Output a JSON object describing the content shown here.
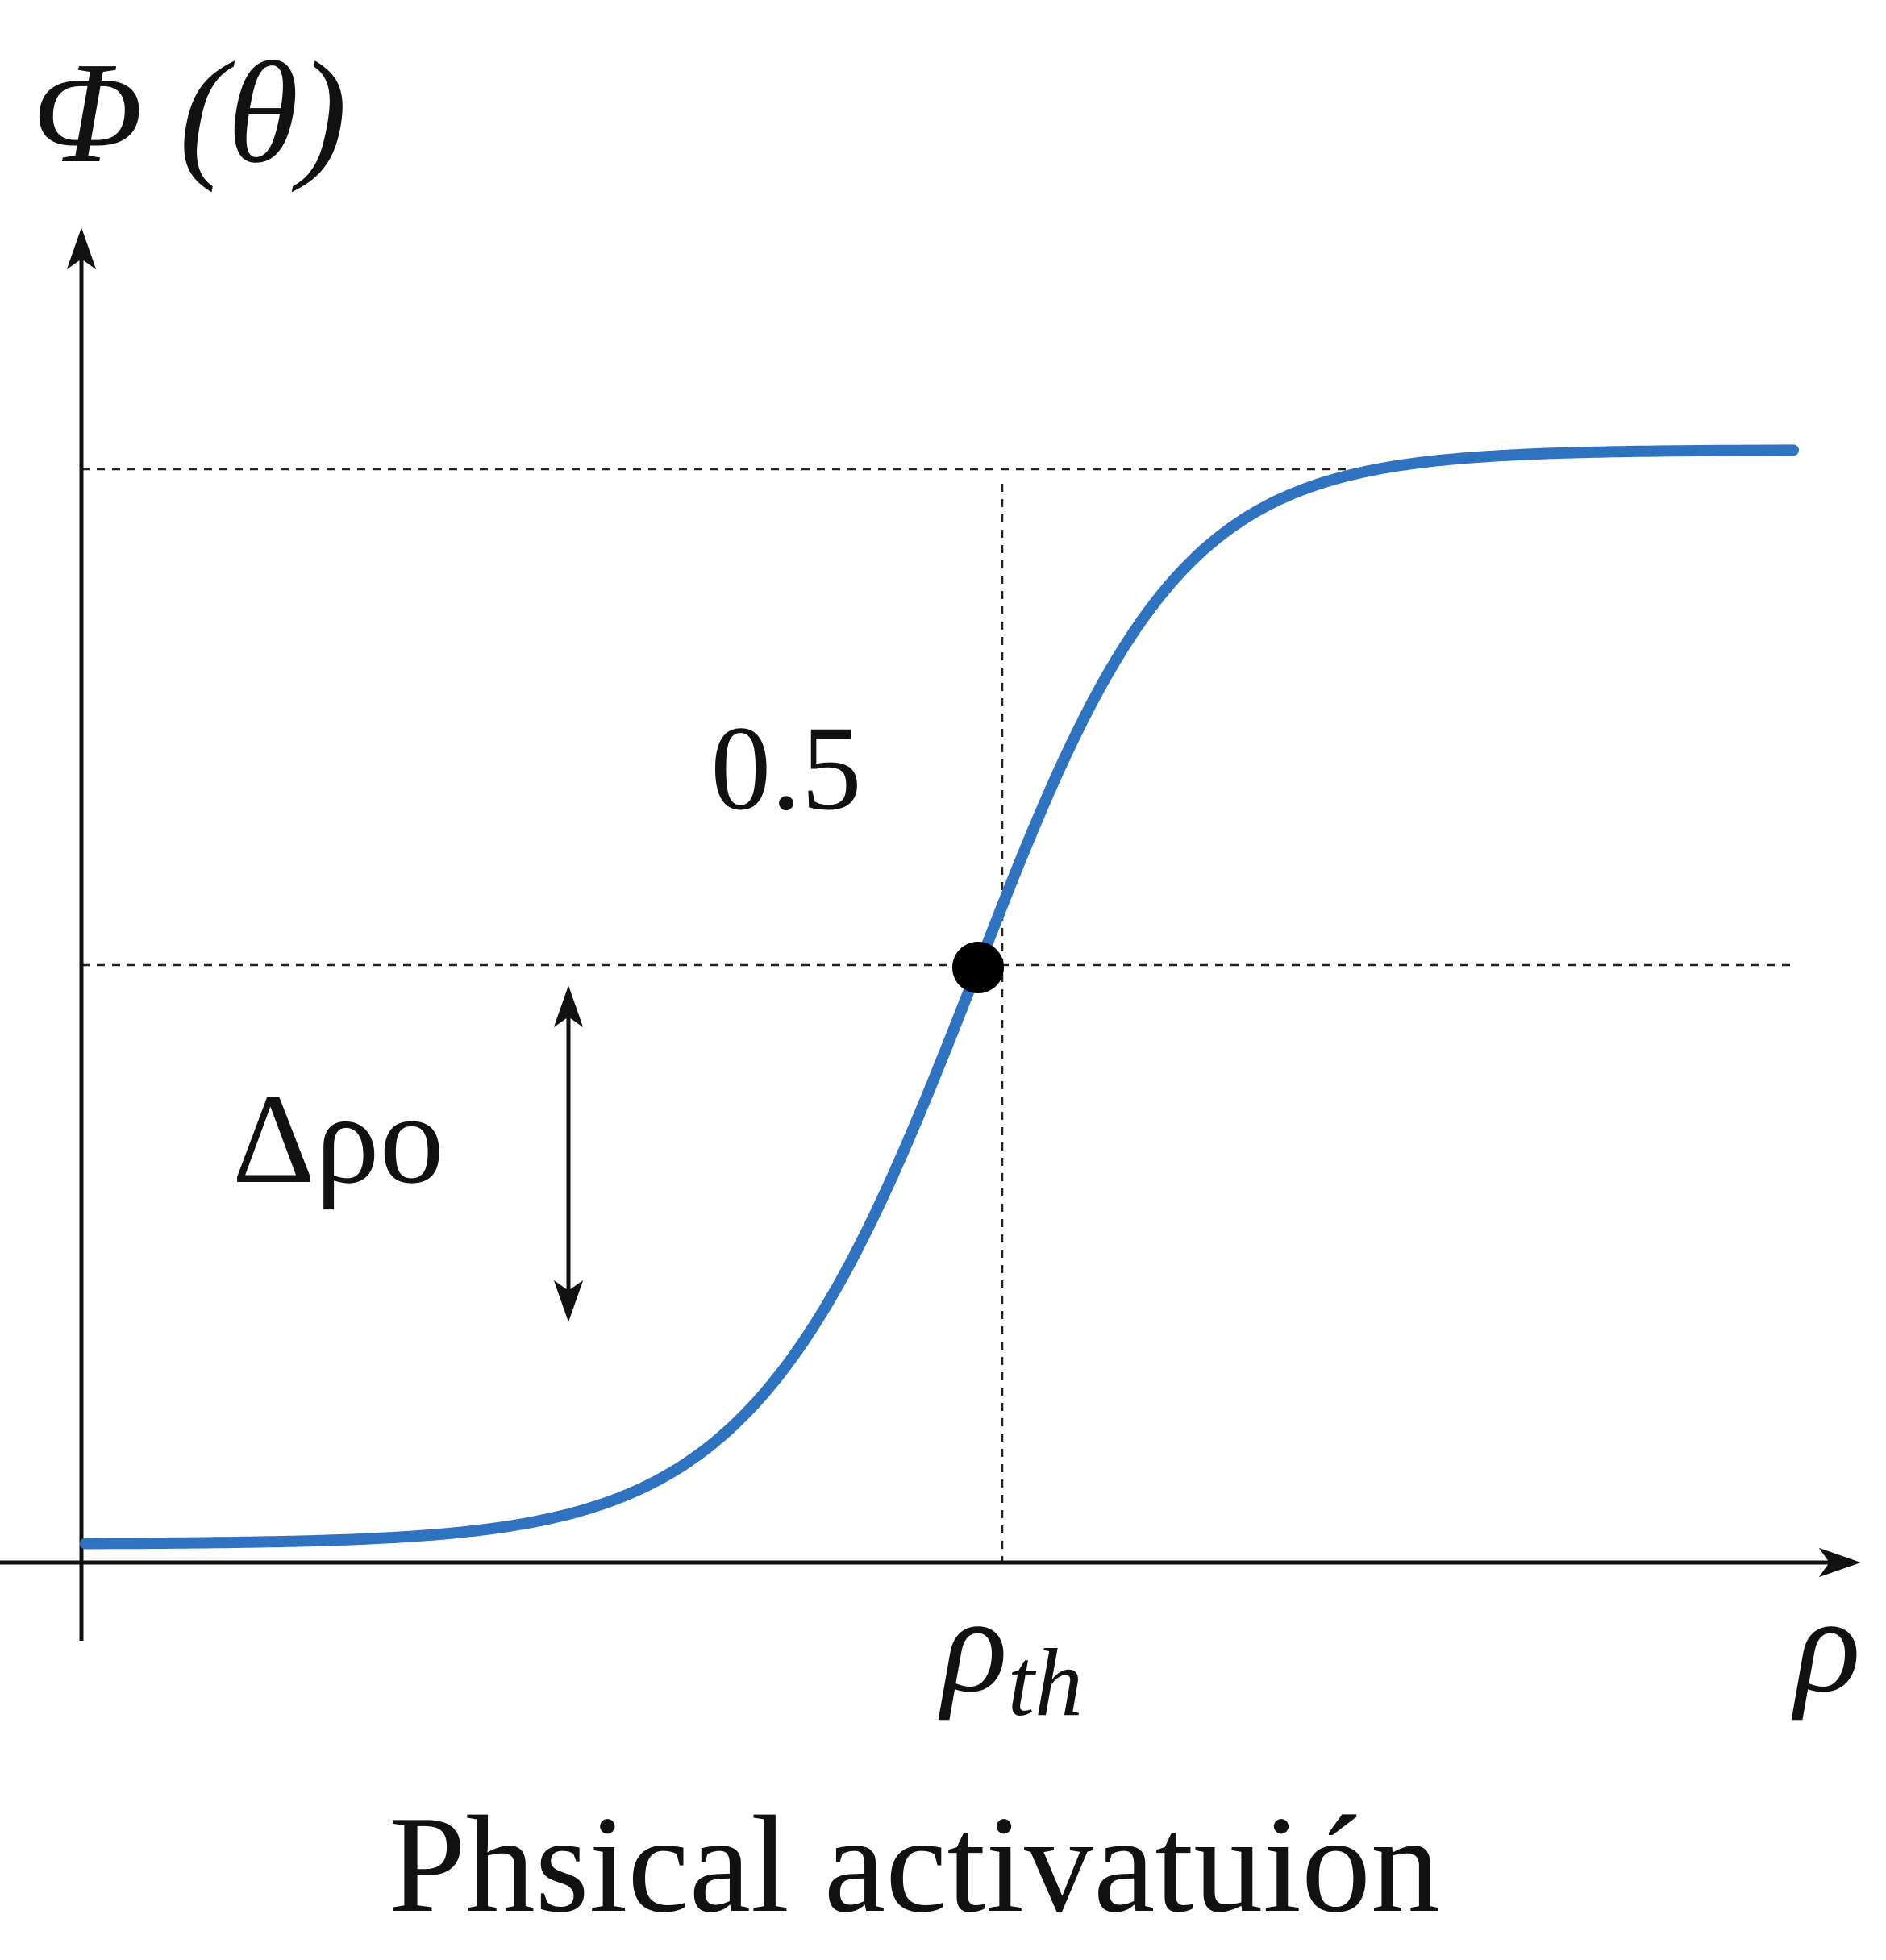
{
  "diagram": {
    "y_axis_label": "Φ (θ)",
    "midpoint_label": "0.5",
    "width_label": "Δρo",
    "threshold_label": {
      "symbol": "ρ",
      "subscript": "th"
    },
    "x_axis_label": "ρ",
    "caption": "Phsical activatuión"
  }
}
